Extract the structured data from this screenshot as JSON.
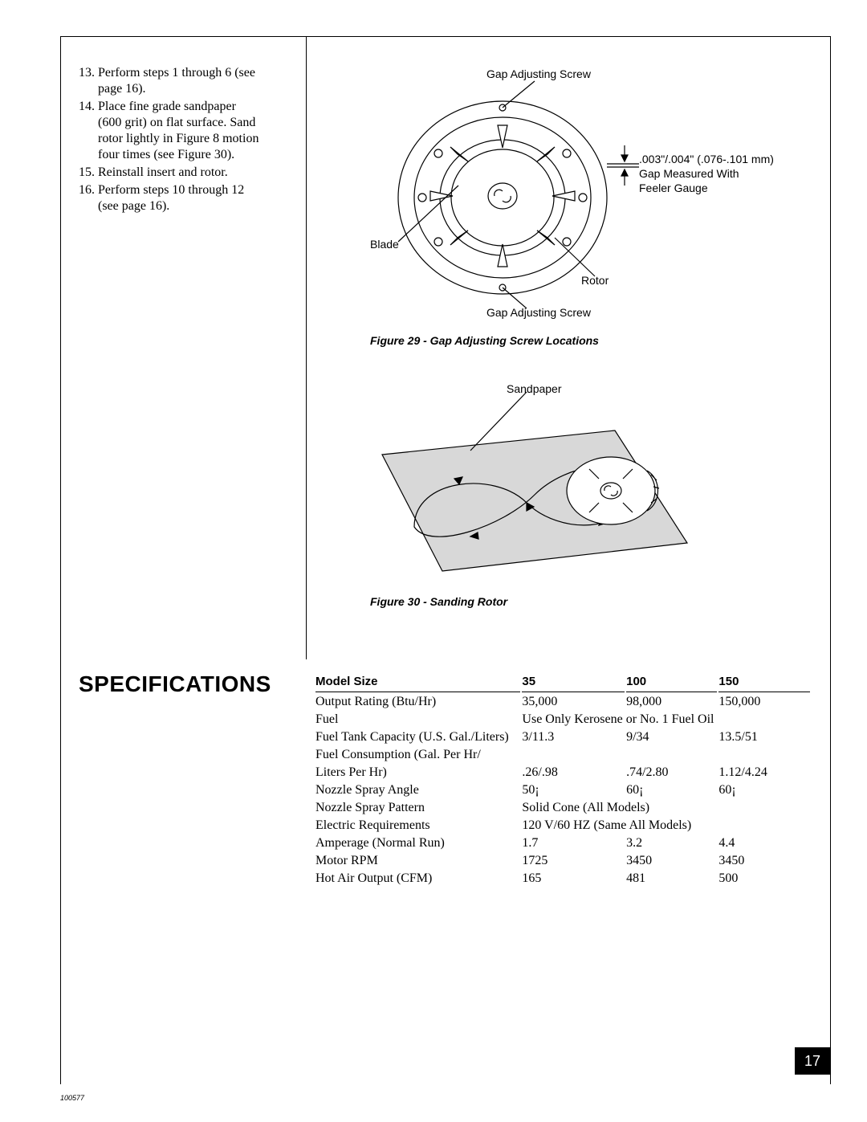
{
  "steps": [
    {
      "n": "13.",
      "text": "Perform steps 1 through 6 (see page 16)."
    },
    {
      "n": "14.",
      "text": "Place fine grade sandpaper (600 grit) on flat surface. Sand rotor lightly in   Figure 8   motion four times (see Figure 30)."
    },
    {
      "n": "15.",
      "text": "Reinstall insert and rotor."
    },
    {
      "n": "16.",
      "text": "Perform steps 10 through 12 (see page 16)."
    }
  ],
  "fig29": {
    "label_top": "Gap Adjusting Screw",
    "side_line1": ".003\"/.004\" (.076-.101 mm)",
    "side_line2": "Gap Measured With",
    "side_line3": "Feeler Gauge",
    "blade": "Blade",
    "rotor": "Rotor",
    "label_bot": "Gap Adjusting Screw",
    "caption": "Figure 29 - Gap Adjusting Screw Locations"
  },
  "fig30": {
    "label": "Sandpaper",
    "caption": "Figure 30 - Sanding Rotor"
  },
  "spec": {
    "heading": "SPECIFICATIONS",
    "col0": "Model Size",
    "col1": "35",
    "col2": "100",
    "col3": "150",
    "rows": [
      {
        "label": "Output Rating (Btu/Hr)",
        "c1": "35,000",
        "c2": "98,000",
        "c3": "150,000"
      },
      {
        "label": "Fuel",
        "c1": "Use Only Kerosene or No. 1 Fuel Oil",
        "c2": "",
        "c3": ""
      },
      {
        "label": "Fuel Tank Capacity (U.S. Gal./Liters)",
        "c1": "3/11.3",
        "c2": "9/34",
        "c3": "13.5/51"
      },
      {
        "label": "Fuel Consumption (Gal. Per Hr/",
        "c1": "",
        "c2": "",
        "c3": ""
      },
      {
        "label": "Liters Per Hr)",
        "c1": ".26/.98",
        "c2": ".74/2.80",
        "c3": "1.12/4.24"
      },
      {
        "label": "Nozzle Spray Angle",
        "c1": "50¡",
        "c2": "60¡",
        "c3": "60¡"
      },
      {
        "label": "Nozzle Spray Pattern",
        "c1": "Solid Cone (All Models)",
        "c2": "",
        "c3": ""
      },
      {
        "label": "Electric Requirements",
        "c1": "120 V/60 HZ (Same All Models)",
        "c2": "",
        "c3": ""
      },
      {
        "label": "Amperage (Normal Run)",
        "c1": "1.7",
        "c2": "3.2",
        "c3": "4.4"
      },
      {
        "label": "Motor RPM",
        "c1": "1725",
        "c2": "3450",
        "c3": "3450"
      },
      {
        "label": "Hot Air Output (CFM)",
        "c1": "165",
        "c2": "481",
        "c3": "500"
      }
    ]
  },
  "page_number": "17",
  "doc_id": "100577",
  "diagram_style": {
    "stroke": "#000000",
    "stroke_width": 1.2,
    "fill_paper": "#d8d8d8"
  }
}
